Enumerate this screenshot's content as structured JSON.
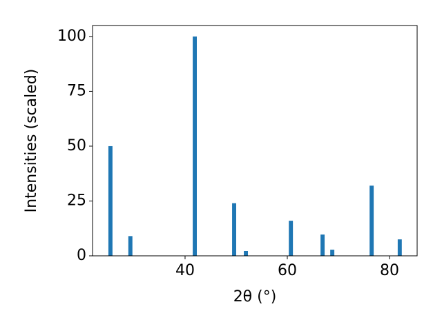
{
  "chart_data": {
    "type": "bar",
    "xlabel": "2θ (°)",
    "ylabel": "Intensities (scaled)",
    "x": [
      25.4,
      29.3,
      41.9,
      49.6,
      51.9,
      60.7,
      66.9,
      68.8,
      76.5,
      82.0
    ],
    "values": [
      50,
      9,
      100,
      24,
      2.2,
      16,
      9.7,
      2.8,
      32,
      7.5
    ],
    "color": "#1f77b4",
    "xlim": [
      21.9,
      85.4
    ],
    "xticks": [
      40,
      60,
      80
    ],
    "ylim": [
      0,
      105
    ],
    "yticks": [
      0,
      25,
      50,
      75,
      100
    ],
    "grid": false
  }
}
